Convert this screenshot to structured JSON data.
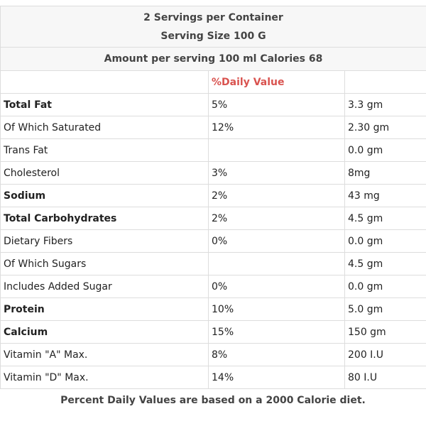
{
  "header": {
    "lines": [
      "2 Servings per Container",
      "Serving Size 100 G"
    ],
    "amount": "Amount per serving 100 ml Calories 68"
  },
  "table": {
    "daily_header": "%Daily Value",
    "rows": [
      {
        "label": "Total Fat",
        "daily": "5%",
        "amount": "3.3 gm",
        "bold": true
      },
      {
        "label": "Of Which Saturated",
        "daily": "12%",
        "amount": "2.30 gm",
        "bold": false
      },
      {
        "label": "Trans Fat",
        "daily": null,
        "amount": "0.0 gm",
        "bold": false
      },
      {
        "label": "Cholesterol",
        "daily": "3%",
        "amount": "8mg",
        "bold": false
      },
      {
        "label": "Sodium",
        "daily": "2%",
        "amount": "43 mg",
        "bold": true
      },
      {
        "label": "Total Carbohydrates",
        "daily": "2%",
        "amount": "4.5 gm",
        "bold": true
      },
      {
        "label": "Dietary Fibers",
        "daily": "0%",
        "amount": "0.0 gm",
        "bold": false
      },
      {
        "label": "Of Which Sugars",
        "daily": null,
        "amount": "4.5 gm",
        "bold": false
      },
      {
        "label": "Includes Added Sugar",
        "daily": "0%",
        "amount": "0.0 gm",
        "bold": false
      },
      {
        "label": "Protein",
        "daily": "10%",
        "amount": "5.0 gm",
        "bold": true
      },
      {
        "label": "Calcium",
        "daily": "15%",
        "amount": "150 gm",
        "bold": true
      },
      {
        "label": "Vitamin \"A\" Max.",
        "daily": "8%",
        "amount": "200 I.U",
        "bold": false
      },
      {
        "label": "Vitamin \"D\" Max.",
        "daily": "14%",
        "amount": "80 I.U",
        "bold": false
      }
    ]
  },
  "footer": "Percent Daily Values are based on a 2000 Calorie diet."
}
